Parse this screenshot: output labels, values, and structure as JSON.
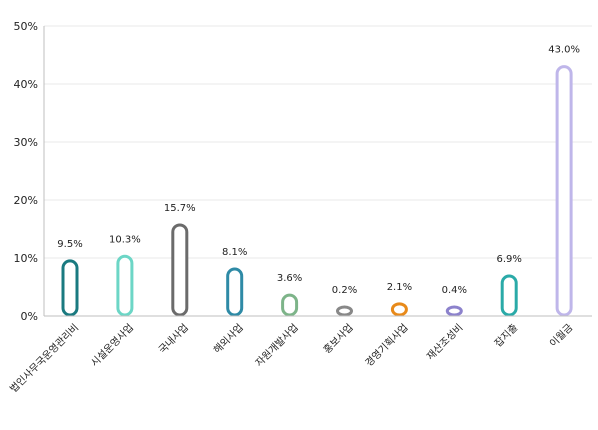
{
  "chart_data": {
    "type": "bar",
    "title": "",
    "xlabel": "",
    "ylabel": "",
    "ylim": [
      0,
      50
    ],
    "yticks": [
      "0%",
      "10%",
      "20%",
      "30%",
      "40%",
      "50%"
    ],
    "ytick_values": [
      0,
      10,
      20,
      30,
      40,
      50
    ],
    "grid": true,
    "legend": "none",
    "categories": [
      "법인사무국운영관리비",
      "시설운영사업",
      "국내사업",
      "해외사업",
      "자원개발사업",
      "홍보사업",
      "경영기획사업",
      "재산조성비",
      "잡지출",
      "이월금"
    ],
    "values": [
      9.5,
      10.3,
      15.7,
      8.1,
      3.6,
      0.2,
      2.1,
      0.4,
      6.9,
      43.0
    ],
    "value_labels": [
      "9.5%",
      "10.3%",
      "15.7%",
      "8.1%",
      "3.6%",
      "0.2%",
      "2.1%",
      "0.4%",
      "6.9%",
      "43.0%"
    ],
    "colors": [
      "#1a7a80",
      "#6cd6c6",
      "#6b6b6b",
      "#2e8aa6",
      "#7db489",
      "#888888",
      "#e88a1a",
      "#8c82cc",
      "#2aaaa8",
      "#bfb6ea"
    ]
  }
}
